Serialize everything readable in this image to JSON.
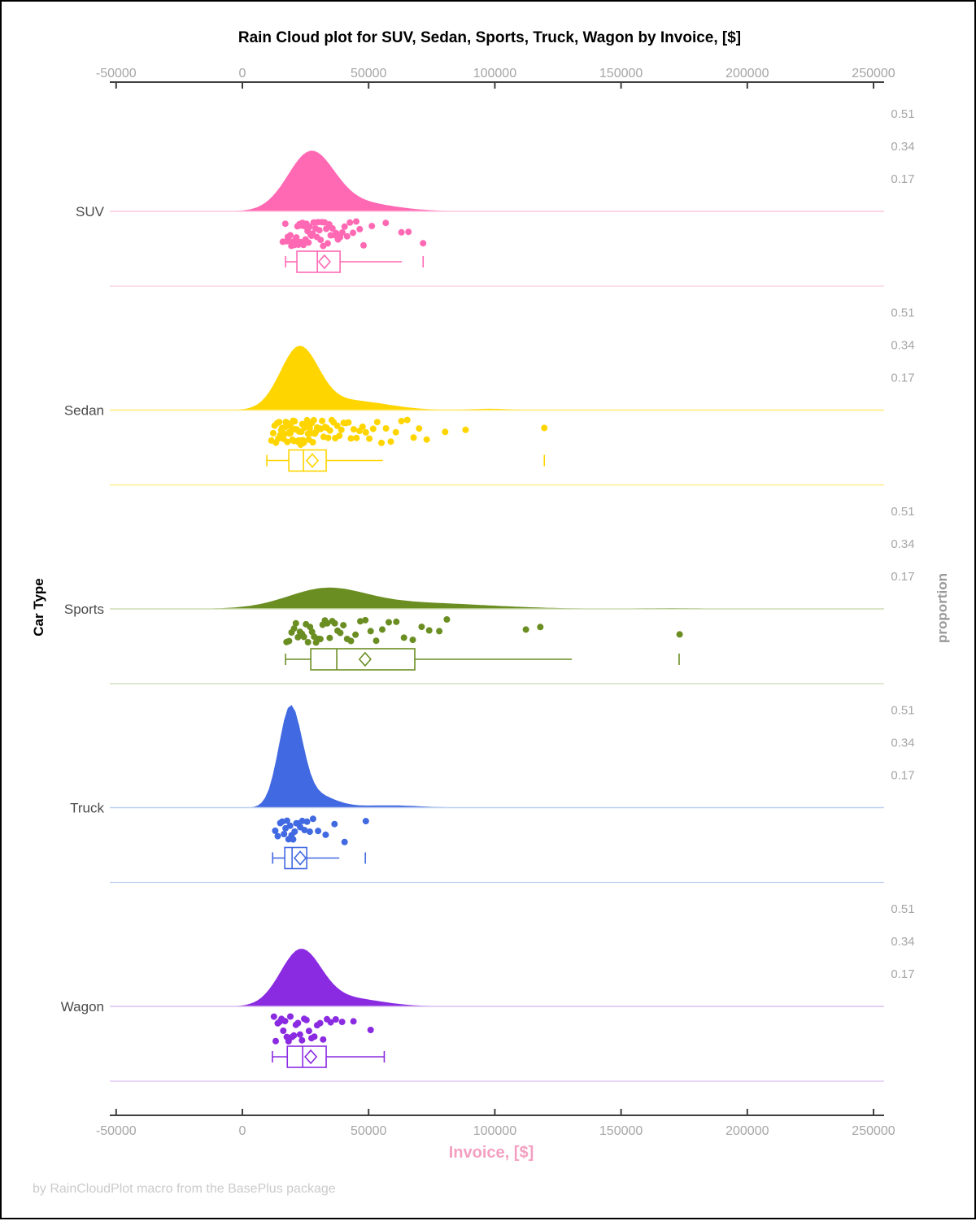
{
  "title": "Rain Cloud plot for SUV, Sedan, Sports, Truck, Wagon by Invoice, [$]",
  "footer": "by RainCloudPlot macro from the BasePlus package",
  "chart_data": {
    "type": "raincloud",
    "title": "Rain Cloud plot for SUV, Sedan, Sports, Truck, Wagon by Invoice, [$]",
    "xlabel": "Invoice, [$]",
    "ylabel_left": "Car Type",
    "ylabel_right": "proportion",
    "x_axis": {
      "ticks": [
        -50000,
        0,
        50000,
        100000,
        150000,
        200000,
        250000
      ],
      "range": [
        -52500,
        255000
      ],
      "grid": false
    },
    "proportion_ticks": [
      0.17,
      0.34,
      0.51
    ],
    "colors": {
      "axis_line": "#3F3F3F",
      "axis_tick_text": "#A6A6A6",
      "proportion_text": "#A6A6A6",
      "category_label": "#4A4A4A",
      "title_text": "#000000",
      "xlabel_text": "#F49FC0",
      "footer_text": "#CBCBCB"
    },
    "series": [
      {
        "name": "SUV",
        "color": "#FF69B4",
        "pale_color": "#FFC9E0",
        "density_components": [
          {
            "mu": 27000,
            "sigma": 9000,
            "amp": 0.285
          },
          {
            "mu": 42000,
            "sigma": 16000,
            "amp": 0.05
          }
        ],
        "box": {
          "whisker_low": 17100,
          "q1": 21600,
          "median": 29700,
          "q3": 38700,
          "whisker_high": 63200,
          "mean": 32500,
          "outliers": [
            71600
          ],
          "right_cap": false
        },
        "points": [
          16000,
          17000,
          17500,
          18000,
          18500,
          19000,
          19400,
          19800,
          20200,
          20600,
          21000,
          21400,
          21800,
          22200,
          22600,
          23000,
          23400,
          23800,
          24200,
          24600,
          25000,
          25400,
          25800,
          26200,
          26600,
          27000,
          27400,
          27800,
          28200,
          28600,
          29000,
          29500,
          30000,
          30500,
          31000,
          31500,
          32000,
          32600,
          33200,
          33800,
          34400,
          35000,
          35700,
          36400,
          37100,
          37900,
          38700,
          39600,
          40500,
          41500,
          42600,
          43800,
          45100,
          46500,
          48000,
          51300,
          56800,
          63000,
          65800,
          71600
        ]
      },
      {
        "name": "Sedan",
        "color": "#FFD500",
        "pale_color": "#FFE978",
        "density_components": [
          {
            "mu": 22500,
            "sigma": 7500,
            "amp": 0.315
          },
          {
            "mu": 42000,
            "sigma": 15000,
            "amp": 0.05
          },
          {
            "mu": 98000,
            "sigma": 8000,
            "amp": 0.007
          }
        ],
        "box": {
          "whisker_low": 9700,
          "q1": 18400,
          "median": 24200,
          "q3": 33200,
          "whisker_high": 55700,
          "mean": 27700,
          "outliers": [
            119600
          ],
          "right_cap": false
        },
        "points": [
          11500,
          12200,
          12800,
          13300,
          13800,
          14200,
          14600,
          15000,
          15400,
          15700,
          16000,
          16300,
          16600,
          16900,
          17200,
          17500,
          17800,
          18100,
          18400,
          18700,
          19000,
          19200,
          19500,
          19800,
          20100,
          20400,
          20700,
          21000,
          21300,
          21600,
          21900,
          22200,
          22500,
          22800,
          23100,
          23400,
          23700,
          24000,
          24300,
          24600,
          25000,
          25300,
          25600,
          26000,
          26300,
          26700,
          27100,
          27500,
          27900,
          28300,
          28700,
          29100,
          29600,
          30100,
          30600,
          31100,
          31600,
          32200,
          32800,
          33400,
          34000,
          34700,
          35400,
          36100,
          36800,
          37600,
          38400,
          39200,
          40100,
          41000,
          42000,
          43000,
          44100,
          45200,
          46400,
          47600,
          48900,
          50300,
          51800,
          53400,
          55100,
          56900,
          58800,
          60800,
          63000,
          65300,
          67800,
          70000,
          73000,
          80300,
          88400,
          119600
        ]
      },
      {
        "name": "Sports",
        "color": "#6B8E23",
        "pale_color": "#CDDCB4",
        "density_components": [
          {
            "mu": 33000,
            "sigma": 15000,
            "amp": 0.092
          },
          {
            "mu": 65000,
            "sigma": 30000,
            "amp": 0.033
          },
          {
            "mu": 170000,
            "sigma": 12000,
            "amp": 0.004
          }
        ],
        "box": {
          "whisker_low": 17100,
          "q1": 27100,
          "median": 37400,
          "q3": 68300,
          "whisker_high": 130500,
          "mean": 48600,
          "outliers": [
            173000
          ],
          "right_cap": false
        },
        "points": [
          17500,
          18500,
          19500,
          20500,
          21200,
          22000,
          22800,
          23600,
          24400,
          25200,
          26000,
          26800,
          27600,
          28400,
          29200,
          30000,
          30900,
          31800,
          32700,
          33600,
          34600,
          35600,
          36600,
          37700,
          38800,
          40000,
          41500,
          43000,
          44800,
          46700,
          48700,
          50800,
          53000,
          55400,
          58000,
          61000,
          64000,
          67500,
          71000,
          74000,
          78000,
          81000,
          112300,
          118000,
          173200
        ]
      },
      {
        "name": "Truck",
        "color": "#4169E1",
        "pale_color": "#BFD0F0",
        "density_components": [
          {
            "mu": 19000,
            "sigma": 4600,
            "amp": 0.5
          },
          {
            "mu": 28000,
            "sigma": 8000,
            "amp": 0.07
          },
          {
            "mu": 58000,
            "sigma": 12000,
            "amp": 0.012
          }
        ],
        "box": {
          "whisker_low": 12000,
          "q1": 16800,
          "median": 19700,
          "q3": 25500,
          "whisker_high": 38400,
          "mean": 22900,
          "outliers": [
            48700
          ],
          "right_cap": false
        },
        "points": [
          13000,
          14000,
          15000,
          15800,
          16500,
          17100,
          17700,
          18300,
          18900,
          19500,
          20100,
          20700,
          21400,
          22100,
          22900,
          23700,
          24600,
          25600,
          26700,
          28000,
          30000,
          33000,
          36500,
          40500,
          48900
        ]
      },
      {
        "name": "Wagon",
        "color": "#8A2BE2",
        "pale_color": "#D9BFF0",
        "density_components": [
          {
            "mu": 23000,
            "sigma": 8000,
            "amp": 0.28
          },
          {
            "mu": 40000,
            "sigma": 14000,
            "amp": 0.045
          }
        ],
        "box": {
          "whisker_low": 11900,
          "q1": 17800,
          "median": 23900,
          "q3": 33200,
          "whisker_high": 56200,
          "mean": 27100,
          "outliers": [],
          "right_cap": true
        },
        "points": [
          12500,
          13200,
          14000,
          14800,
          15500,
          16200,
          16900,
          17600,
          18300,
          19000,
          19700,
          20400,
          21200,
          22000,
          22800,
          23600,
          24500,
          25400,
          26400,
          27400,
          28500,
          29600,
          30800,
          32000,
          33500,
          35000,
          37000,
          39500,
          44000,
          50800
        ]
      }
    ]
  }
}
